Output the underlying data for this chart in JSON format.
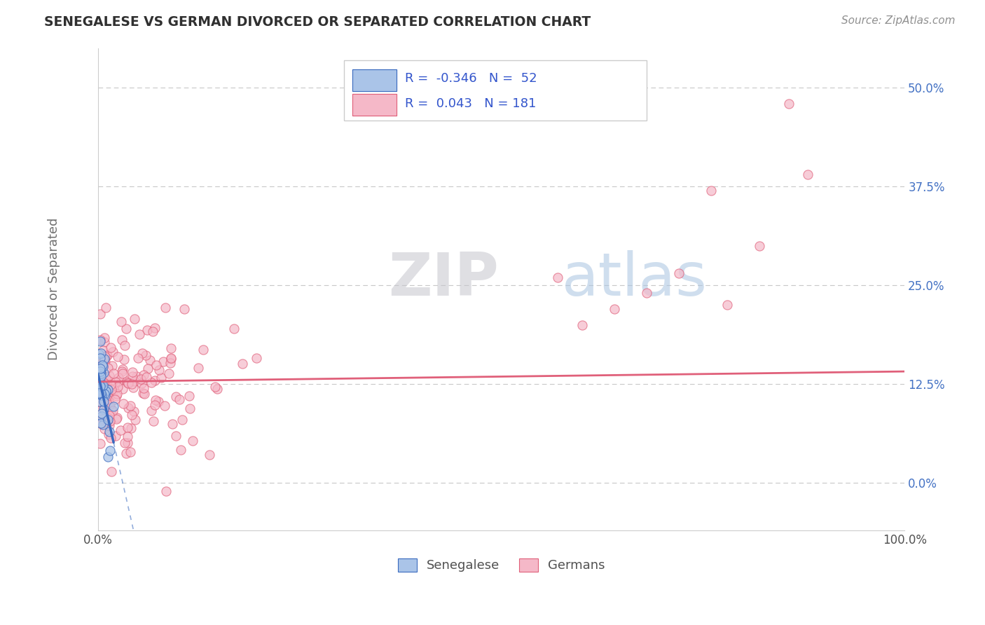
{
  "title": "SENEGALESE VS GERMAN DIVORCED OR SEPARATED CORRELATION CHART",
  "source": "Source: ZipAtlas.com",
  "ylabel": "Divorced or Separated",
  "xlabel": "",
  "senegalese": {
    "R": -0.346,
    "N": 52,
    "dot_color": "#aac4e8",
    "line_color": "#3a6abf"
  },
  "germans": {
    "R": 0.043,
    "N": 181,
    "dot_color": "#f5b8c8",
    "line_color": "#e0607a"
  },
  "xlim": [
    0.0,
    1.0
  ],
  "ylim": [
    -0.06,
    0.55
  ],
  "yticks": [
    0.0,
    0.125,
    0.25,
    0.375,
    0.5
  ],
  "ytick_labels": [
    "0.0%",
    "12.5%",
    "25.0%",
    "37.5%",
    "50.0%"
  ],
  "xticks": [
    0.0,
    0.25,
    0.5,
    0.75,
    1.0
  ],
  "xtick_labels": [
    "0.0%",
    "",
    "",
    "",
    "100.0%"
  ],
  "grid_color": "#c8c8c8",
  "background_color": "#ffffff",
  "title_color": "#303030",
  "source_color": "#909090",
  "watermark_zip_color": "#c0c0c8",
  "watermark_atlas_color": "#a8c4e0"
}
